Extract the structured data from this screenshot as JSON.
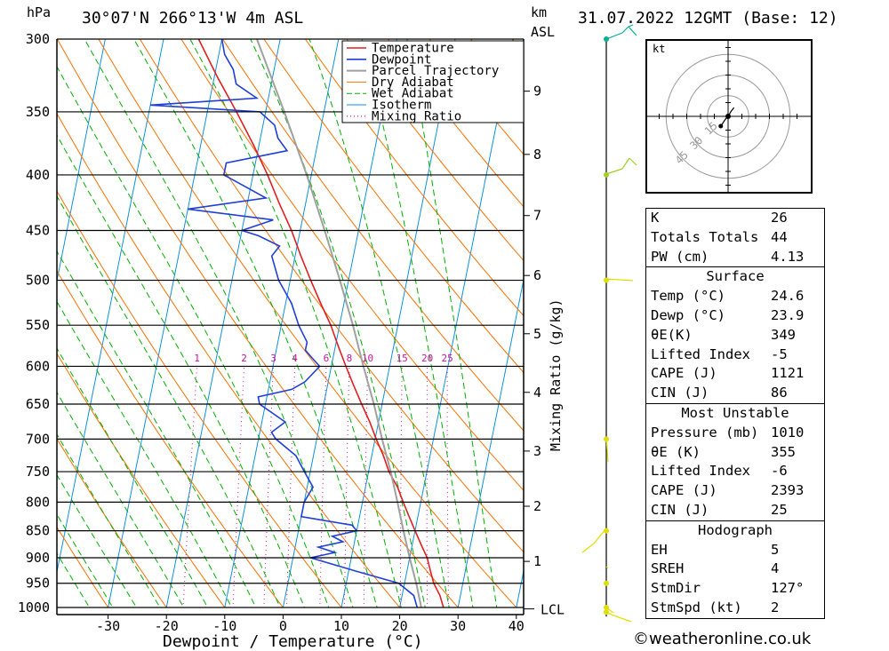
{
  "header": {
    "hpa_label": "hPa",
    "location": "30°07'N 266°13'W 4m ASL",
    "km_label": "km",
    "asl_label": "ASL",
    "datetime": "31.07.2022 12GMT (Base: 12)"
  },
  "chart_data": {
    "type": "line",
    "subtype": "skew-T log-P diagram",
    "xlabel": "Dewpoint / Temperature (°C)",
    "ylabel_left": "hPa",
    "ylabel_right": "Mixing Ratio (g/kg)",
    "pressure_ticks": [
      300,
      350,
      400,
      450,
      500,
      550,
      600,
      650,
      700,
      750,
      800,
      850,
      900,
      950,
      1000
    ],
    "temperature_ticks": [
      -30,
      -20,
      -10,
      0,
      10,
      20,
      30,
      40
    ],
    "xlim": [
      -40,
      40
    ],
    "ylim_hpa": [
      1000,
      300
    ],
    "height_ticks_km": [
      {
        "km": "1",
        "p": 907
      },
      {
        "km": "2",
        "p": 807
      },
      {
        "km": "3",
        "p": 718
      },
      {
        "km": "4",
        "p": 634
      },
      {
        "km": "5",
        "p": 560
      },
      {
        "km": "6",
        "p": 495
      },
      {
        "km": "7",
        "p": 436
      },
      {
        "km": "8",
        "p": 383
      },
      {
        "km": "9",
        "p": 335
      }
    ],
    "lcl": {
      "label": "LCL",
      "p": 1003
    },
    "mixing_ratio_labels": [
      "1",
      "2",
      "3",
      "4",
      "6",
      "8",
      "10",
      "15",
      "20",
      "25"
    ],
    "mixing_ratio_values": [
      1,
      2,
      3,
      4,
      6,
      8,
      10,
      15,
      20,
      25
    ],
    "legend": [
      "Temperature",
      "Dewpoint",
      "Parcel Trajectory",
      "Dry Adiabat",
      "Wet Adiabat",
      "Isotherm",
      "Mixing Ratio"
    ],
    "colors": {
      "temperature": "#e02020",
      "dewpoint": "#1f3fd6",
      "parcel": "#a0a0a0",
      "dry_adiabat": "#ff7000",
      "wet_adiabat": "#00b000",
      "isotherm": "#1090e0",
      "mixing_ratio": "#d010a0"
    },
    "series": [
      {
        "name": "Temperature",
        "points": [
          [
            1010,
            24.6
          ],
          [
            1000,
            27.5
          ],
          [
            975,
            26.5
          ],
          [
            950,
            25
          ],
          [
            925,
            24
          ],
          [
            900,
            23
          ],
          [
            875,
            21.5
          ],
          [
            850,
            20
          ],
          [
            825,
            18.5
          ],
          [
            800,
            17
          ],
          [
            775,
            15.5
          ],
          [
            750,
            13.5
          ],
          [
            725,
            12
          ],
          [
            700,
            10.2
          ],
          [
            675,
            8.5
          ],
          [
            650,
            6.5
          ],
          [
            625,
            4.5
          ],
          [
            600,
            2.5
          ],
          [
            575,
            0.5
          ],
          [
            550,
            -1.5
          ],
          [
            525,
            -4
          ],
          [
            500,
            -6.5
          ],
          [
            475,
            -9
          ],
          [
            450,
            -11.5
          ],
          [
            425,
            -14.5
          ],
          [
            400,
            -17.5
          ],
          [
            375,
            -21
          ],
          [
            350,
            -25
          ],
          [
            325,
            -29.5
          ],
          [
            300,
            -34
          ]
        ]
      },
      {
        "name": "Dewpoint",
        "points": [
          [
            1010,
            23.9
          ],
          [
            1000,
            23
          ],
          [
            975,
            22
          ],
          [
            950,
            19
          ],
          [
            925,
            11
          ],
          [
            900,
            3
          ],
          [
            890,
            7
          ],
          [
            880,
            4
          ],
          [
            870,
            8
          ],
          [
            860,
            6
          ],
          [
            850,
            10
          ],
          [
            840,
            9
          ],
          [
            825,
            0
          ],
          [
            800,
            0
          ],
          [
            775,
            1
          ],
          [
            750,
            -1
          ],
          [
            725,
            -3
          ],
          [
            700,
            -7
          ],
          [
            690,
            -8
          ],
          [
            675,
            -6
          ],
          [
            650,
            -11
          ],
          [
            640,
            -11.5
          ],
          [
            630,
            -6
          ],
          [
            620,
            -4
          ],
          [
            600,
            -2
          ],
          [
            590,
            -3.5
          ],
          [
            580,
            -5
          ],
          [
            570,
            -5
          ],
          [
            560,
            -6
          ],
          [
            550,
            -7
          ],
          [
            525,
            -9
          ],
          [
            500,
            -12
          ],
          [
            475,
            -14
          ],
          [
            465,
            -13
          ],
          [
            455,
            -17
          ],
          [
            450,
            -20
          ],
          [
            440,
            -15
          ],
          [
            430,
            -30
          ],
          [
            420,
            -17
          ],
          [
            400,
            -25
          ],
          [
            390,
            -25
          ],
          [
            380,
            -15
          ],
          [
            370,
            -17
          ],
          [
            360,
            -18
          ],
          [
            350,
            -21
          ],
          [
            345,
            -40
          ],
          [
            340,
            -22
          ],
          [
            330,
            -26
          ],
          [
            320,
            -27
          ],
          [
            310,
            -29
          ],
          [
            300,
            -30
          ]
        ]
      },
      {
        "name": "Parcel Trajectory",
        "points": [
          [
            1003,
            23.8
          ],
          [
            950,
            22
          ],
          [
            900,
            20
          ],
          [
            850,
            18
          ],
          [
            800,
            16
          ],
          [
            750,
            13.8
          ],
          [
            700,
            11.2
          ],
          [
            650,
            8.6
          ],
          [
            600,
            5.5
          ],
          [
            550,
            2.3
          ],
          [
            500,
            -1.5
          ],
          [
            450,
            -5.8
          ],
          [
            400,
            -10.8
          ],
          [
            350,
            -16.8
          ],
          [
            300,
            -24
          ]
        ]
      }
    ]
  },
  "hodograph": {
    "unit_label": "kt",
    "ring_labels": [
      "15",
      "30",
      "45"
    ],
    "wind_points": [
      [
        -15,
        -20
      ],
      [
        -5,
        -5
      ],
      [
        0,
        0
      ],
      [
        6,
        10
      ],
      [
        12,
        18
      ]
    ],
    "storm_motion": {
      "dir_deg": 127,
      "speed_kt": 2
    }
  },
  "wind_barbs": {
    "color_levels": [
      "#00b090",
      "#a0d020",
      "#e0e000"
    ],
    "levels": [
      {
        "p": 300,
        "color": "#00b090"
      },
      {
        "p": 400,
        "color": "#a0d020"
      },
      {
        "p": 500,
        "color": "#e0e000"
      },
      {
        "p": 700,
        "color": "#e0e000"
      },
      {
        "p": 850,
        "color": "#e0e000"
      },
      {
        "p": 950,
        "color": "#e0e000"
      },
      {
        "p": 1000,
        "color": "#e0e000"
      },
      {
        "p": 1010,
        "color": "#e0e000"
      }
    ]
  },
  "indices": {
    "rows": [
      {
        "label": "K",
        "value": "26"
      },
      {
        "label": "Totals Totals",
        "value": "44"
      },
      {
        "label": "PW (cm)",
        "value": "4.13"
      }
    ]
  },
  "surface": {
    "title": "Surface",
    "rows": [
      {
        "label": "Temp (°C)",
        "value": "24.6"
      },
      {
        "label": "Dewp (°C)",
        "value": "23.9"
      },
      {
        "label": "θE(K)",
        "value": "349"
      },
      {
        "label": "Lifted Index",
        "value": "-5"
      },
      {
        "label": "CAPE (J)",
        "value": "1121"
      },
      {
        "label": "CIN (J)",
        "value": "86"
      }
    ]
  },
  "most_unstable": {
    "title": "Most Unstable",
    "rows": [
      {
        "label": "Pressure (mb)",
        "value": "1010"
      },
      {
        "label": "θE (K)",
        "value": "355"
      },
      {
        "label": "Lifted Index",
        "value": "-6"
      },
      {
        "label": "CAPE (J)",
        "value": "2393"
      },
      {
        "label": "CIN (J)",
        "value": "25"
      }
    ]
  },
  "hodograph_table": {
    "title": "Hodograph",
    "rows": [
      {
        "label": "EH",
        "value": "5"
      },
      {
        "label": "SREH",
        "value": "4"
      },
      {
        "label": "StmDir",
        "value": "127°"
      },
      {
        "label": "StmSpd (kt)",
        "value": "2"
      }
    ]
  },
  "footer": {
    "copyright": "©weatheronline.co.uk"
  }
}
